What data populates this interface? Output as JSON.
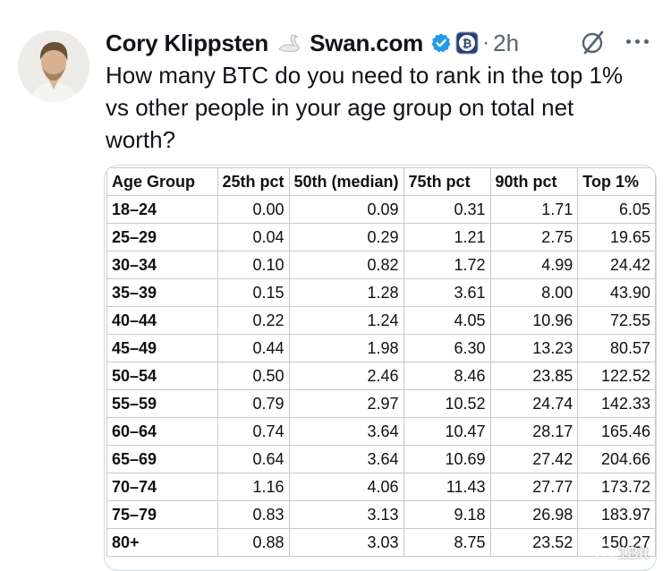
{
  "author": {
    "name": "Cory Klippsten",
    "affiliation": "Swan.com",
    "time": "2h",
    "dot": "·"
  },
  "tweet": {
    "text": "How many BTC do you need to rank in the top 1% vs other people in your age group on total net worth?"
  },
  "icons": {
    "swan": "swan-emoji",
    "verified": "verified-badge",
    "btc": "bitcoin-badge",
    "grok": "grok-icon",
    "more": "more-options-icon"
  },
  "colors": {
    "verified": "#1d9bf0",
    "btc_badge": "#2a3f73",
    "secondary_text": "#536471"
  },
  "table": {
    "headers": [
      "Age Group",
      "25th pct",
      "50th (median)",
      "75th pct",
      "90th pct",
      "Top 1%"
    ],
    "rows": [
      [
        "18–24",
        "0.00",
        "0.09",
        "0.31",
        "1.71",
        "6.05"
      ],
      [
        "25–29",
        "0.04",
        "0.29",
        "1.21",
        "2.75",
        "19.65"
      ],
      [
        "30–34",
        "0.10",
        "0.82",
        "1.72",
        "4.99",
        "24.42"
      ],
      [
        "35–39",
        "0.15",
        "1.28",
        "3.61",
        "8.00",
        "43.90"
      ],
      [
        "40–44",
        "0.22",
        "1.24",
        "4.05",
        "10.96",
        "72.55"
      ],
      [
        "45–49",
        "0.44",
        "1.98",
        "6.30",
        "13.23",
        "80.57"
      ],
      [
        "50–54",
        "0.50",
        "2.46",
        "8.46",
        "23.85",
        "122.52"
      ],
      [
        "55–59",
        "0.79",
        "2.97",
        "10.52",
        "24.74",
        "142.33"
      ],
      [
        "60–64",
        "0.74",
        "3.64",
        "10.47",
        "28.17",
        "165.46"
      ],
      [
        "65–69",
        "0.64",
        "3.64",
        "10.69",
        "27.42",
        "204.66"
      ],
      [
        "70–74",
        "1.16",
        "4.06",
        "11.43",
        "27.77",
        "173.72"
      ],
      [
        "75–79",
        "0.83",
        "3.13",
        "9.18",
        "26.98",
        "183.97"
      ],
      [
        "80+",
        "0.88",
        "3.03",
        "8.75",
        "23.52",
        "150.27"
      ]
    ]
  },
  "watermark": {
    "text": "1Bit"
  }
}
